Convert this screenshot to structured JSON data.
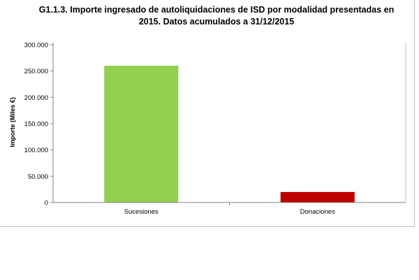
{
  "chart_data": {
    "type": "bar",
    "title": "G1.1.3. Importe ingresado de autoliquidaciones de ISD por modalidad presentadas en\n2015. Datos acumulados a 31/12/2015",
    "xlabel": "",
    "ylabel": "Importe (Miles €)",
    "categories": [
      "Sucesiones",
      "Donaciones"
    ],
    "values": [
      260000,
      20000
    ],
    "colors": [
      "#92d050",
      "#c00000"
    ],
    "ylim": [
      0,
      300000
    ],
    "yticks": [
      0,
      50000,
      100000,
      150000,
      200000,
      250000,
      300000
    ],
    "ytick_labels": [
      "0",
      "50.000",
      "100.000",
      "150.000",
      "200.000",
      "250.000",
      "300.000"
    ],
    "grid": false,
    "legend": "none"
  }
}
